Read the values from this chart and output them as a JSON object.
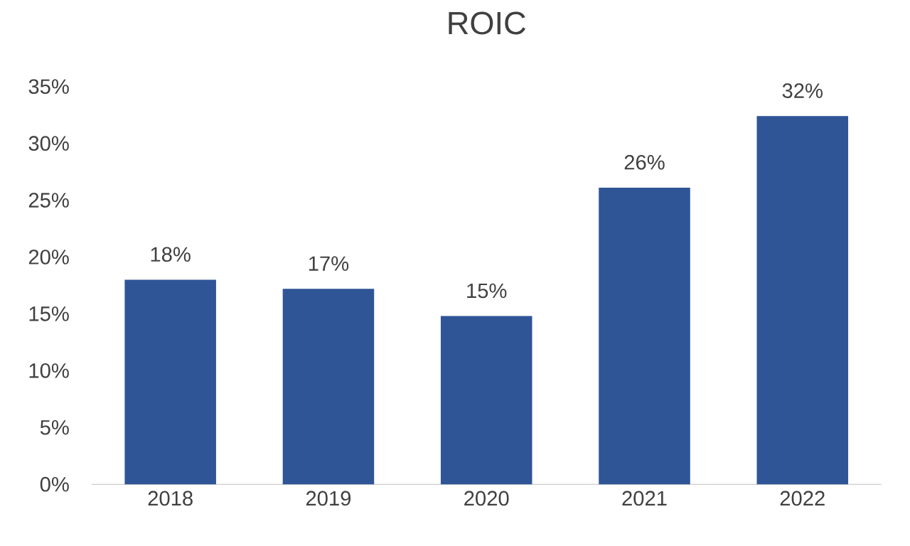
{
  "chart_data": {
    "type": "bar",
    "title": "ROIC",
    "categories": [
      "2018",
      "2019",
      "2020",
      "2021",
      "2022"
    ],
    "values": [
      18,
      17.2,
      14.8,
      26.1,
      32.4
    ],
    "value_labels": [
      "18%",
      "17%",
      "15%",
      "26%",
      "32%"
    ],
    "color": "#2f5597",
    "ylim": [
      0,
      35
    ],
    "yticks": [
      {
        "value": 0,
        "label": "0%"
      },
      {
        "value": 5,
        "label": "5%"
      },
      {
        "value": 10,
        "label": "10%"
      },
      {
        "value": 15,
        "label": "15%"
      },
      {
        "value": 20,
        "label": "20%"
      },
      {
        "value": 25,
        "label": "25%"
      },
      {
        "value": 30,
        "label": "30%"
      },
      {
        "value": 35,
        "label": "35%"
      }
    ]
  }
}
